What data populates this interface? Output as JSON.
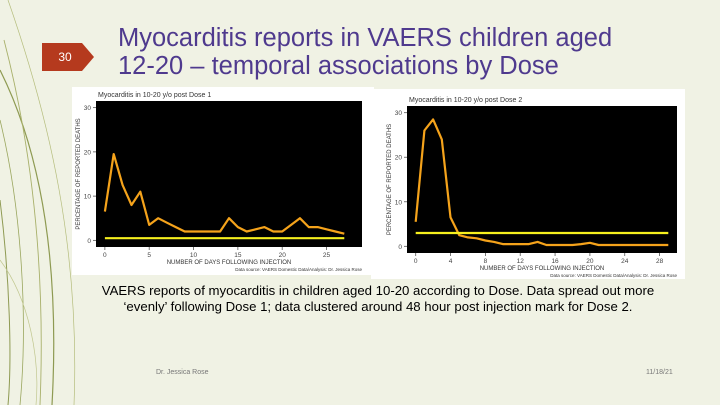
{
  "slide": {
    "number": "30",
    "title_line1": "Myocarditis reports in VAERS children aged",
    "title_line2": "12-20 – temporal associations by Dose",
    "caption": "VAERS reports of myocarditis in children aged 10-20 according to Dose. Data spread out more ‘evenly’ following Dose 1; data clustered around 48 hour post injection mark for Dose 2.",
    "footer_left": "Dr. Jessica Rose",
    "footer_right": "11/18/21"
  },
  "colors": {
    "title": "#4f3a8e",
    "badge": "#b53a1e",
    "series_line": "#f5a31b",
    "reference_line": "#f6f01e",
    "plot_background": "#000000"
  },
  "chart_data": [
    {
      "type": "line",
      "title": "Myocarditis in 10-20 y/o post Dose 1",
      "xlabel": "NUMBER OF DAYS FOLLOWING INJECTION",
      "ylabel": "PERCENTAGE OF REPORTED DEATHS",
      "source": "Data source: VAERS Domestic Data/Analysis: Dr. Jessica Rose",
      "xlim": [
        -1,
        29
      ],
      "ylim": [
        -1.5,
        31.5
      ],
      "xticks": [
        0,
        5,
        10,
        15,
        20,
        25
      ],
      "yticks": [
        0,
        10,
        20,
        30
      ],
      "grid": false,
      "series": [
        {
          "x": [
            0,
            1,
            2,
            3,
            4,
            5,
            6,
            7,
            8,
            9,
            10,
            11,
            12,
            13,
            14,
            15,
            16,
            17,
            18,
            19,
            20,
            21,
            22,
            23,
            24,
            25,
            26,
            27
          ],
          "values": [
            6.5,
            19.5,
            12.5,
            8,
            11,
            3.5,
            5,
            4,
            3,
            2,
            2,
            2,
            2,
            2,
            5,
            3,
            2,
            2.5,
            3,
            2,
            2,
            3.5,
            5,
            3,
            3,
            2.5,
            2,
            1.5
          ]
        },
        {
          "x": [
            0,
            27
          ],
          "values": [
            0.5,
            0.5
          ]
        }
      ]
    },
    {
      "type": "line",
      "title": "Myocarditis in 10-20 y/o post Dose 2",
      "xlabel": "NUMBER OF DAYS FOLLOWING INJECTION",
      "ylabel": "PERCENTAGE OF REPORTED DEATHS",
      "source": "Data source: VAERS Domestic Data/Analysis: Dr. Jessica Rose",
      "xlim": [
        -1,
        30
      ],
      "ylim": [
        -1.5,
        31.5
      ],
      "xticks": [
        0,
        4,
        8,
        12,
        16,
        20,
        24,
        28
      ],
      "yticks": [
        0,
        10,
        20,
        30
      ],
      "grid": false,
      "series": [
        {
          "x": [
            0,
            1,
            2,
            3,
            4,
            5,
            6,
            7,
            8,
            9,
            10,
            11,
            12,
            13,
            14,
            15,
            16,
            17,
            18,
            19,
            20,
            21,
            22,
            23,
            24,
            25,
            26,
            27,
            28,
            29
          ],
          "values": [
            5.5,
            26,
            28.5,
            24,
            6.5,
            2.5,
            2,
            1.8,
            1.3,
            1,
            0.5,
            0.5,
            0.5,
            0.5,
            1,
            0.3,
            0.3,
            0.3,
            0.3,
            0.5,
            0.8,
            0.3,
            0.3,
            0.3,
            0.3,
            0.3,
            0.3,
            0.3,
            0.3,
            0.3
          ]
        },
        {
          "x": [
            0,
            29
          ],
          "values": [
            3,
            3
          ]
        }
      ]
    }
  ]
}
